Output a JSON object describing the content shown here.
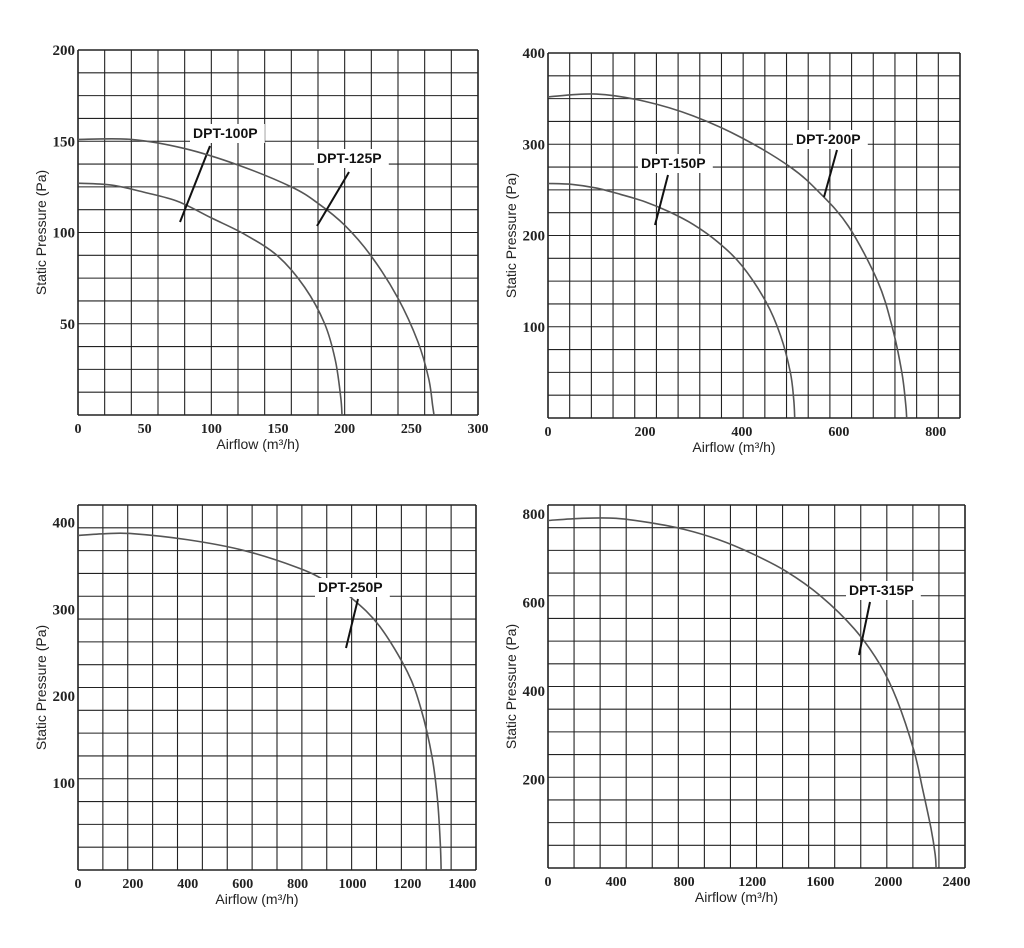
{
  "colors": {
    "grid": "#222222",
    "curve": "#555555",
    "text": "#222222"
  },
  "chart_data": [
    {
      "type": "line",
      "xlabel": "Airflow (m³/h)",
      "ylabel": "Static Pressure (Pa)",
      "xlim": [
        0,
        300
      ],
      "ylim": [
        0,
        200
      ],
      "x_ticks": [
        0,
        50,
        100,
        150,
        200,
        250,
        300
      ],
      "y_ticks": [
        50,
        100,
        150,
        200
      ],
      "grid": true,
      "series": [
        {
          "name": "DPT-100P",
          "points": [
            [
              0,
              127
            ],
            [
              25,
              126
            ],
            [
              50,
              122
            ],
            [
              75,
              117
            ],
            [
              100,
              108
            ],
            [
              125,
              99
            ],
            [
              150,
              87
            ],
            [
              170,
              70
            ],
            [
              185,
              50
            ],
            [
              193,
              30
            ],
            [
              197,
              10
            ],
            [
              198,
              0
            ]
          ]
        },
        {
          "name": "DPT-125P",
          "points": [
            [
              0,
              151
            ],
            [
              40,
              151
            ],
            [
              80,
              146
            ],
            [
              120,
              137
            ],
            [
              160,
              125
            ],
            [
              180,
              116
            ],
            [
              200,
              104
            ],
            [
              220,
              87
            ],
            [
              240,
              64
            ],
            [
              255,
              40
            ],
            [
              263,
              20
            ],
            [
              266,
              5
            ],
            [
              267,
              0
            ]
          ]
        }
      ]
    },
    {
      "type": "line",
      "xlabel": "Airflow (m³/h)",
      "ylabel": "Static Pressure (Pa)",
      "xlim": [
        0,
        850
      ],
      "ylim": [
        0,
        400
      ],
      "x_ticks": [
        0,
        200,
        400,
        600,
        800
      ],
      "y_ticks": [
        100,
        200,
        300,
        400
      ],
      "grid": true,
      "series": [
        {
          "name": "DPT-150P",
          "points": [
            [
              0,
              257
            ],
            [
              50,
              256
            ],
            [
              100,
              252
            ],
            [
              150,
              245
            ],
            [
              200,
              237
            ],
            [
              250,
              226
            ],
            [
              300,
              212
            ],
            [
              350,
              193
            ],
            [
              400,
              167
            ],
            [
              450,
              127
            ],
            [
              480,
              90
            ],
            [
              500,
              50
            ],
            [
              507,
              20
            ],
            [
              509,
              0
            ]
          ]
        },
        {
          "name": "DPT-200P",
          "points": [
            [
              0,
              352
            ],
            [
              100,
              355
            ],
            [
              200,
              347
            ],
            [
              300,
              331
            ],
            [
              400,
              307
            ],
            [
              500,
              275
            ],
            [
              560,
              247
            ],
            [
              620,
              210
            ],
            [
              680,
              150
            ],
            [
              710,
              100
            ],
            [
              730,
              50
            ],
            [
              738,
              15
            ],
            [
              740,
              0
            ]
          ]
        }
      ]
    },
    {
      "type": "line",
      "xlabel": "Airflow (m³/h)",
      "ylabel": "Static Pressure (Pa)",
      "xlim": [
        0,
        1450
      ],
      "ylim": [
        0,
        420
      ],
      "x_ticks": [
        0,
        200,
        400,
        600,
        800,
        1000,
        1200,
        1400
      ],
      "y_ticks": [
        100,
        200,
        300,
        400
      ],
      "grid": true,
      "series": [
        {
          "name": "DPT-250P",
          "points": [
            [
              0,
              385
            ],
            [
              100,
              387
            ],
            [
              200,
              387
            ],
            [
              400,
              380
            ],
            [
              600,
              368
            ],
            [
              800,
              348
            ],
            [
              900,
              333
            ],
            [
              1000,
              312
            ],
            [
              1100,
              280
            ],
            [
              1200,
              228
            ],
            [
              1250,
              185
            ],
            [
              1290,
              130
            ],
            [
              1310,
              80
            ],
            [
              1320,
              30
            ],
            [
              1323,
              0
            ]
          ]
        }
      ]
    },
    {
      "type": "line",
      "xlabel": "Airflow (m³/h)",
      "ylabel": "Static Pressure (Pa)",
      "xlim": [
        0,
        2450
      ],
      "ylim": [
        0,
        820
      ],
      "x_ticks": [
        0,
        400,
        800,
        1200,
        1600,
        2000,
        2400
      ],
      "y_ticks": [
        200,
        400,
        600,
        800
      ],
      "grid": true,
      "series": [
        {
          "name": "DPT-315P",
          "points": [
            [
              0,
              785
            ],
            [
              200,
              790
            ],
            [
              400,
              790
            ],
            [
              600,
              780
            ],
            [
              800,
              765
            ],
            [
              1000,
              742
            ],
            [
              1200,
              710
            ],
            [
              1400,
              670
            ],
            [
              1600,
              615
            ],
            [
              1800,
              540
            ],
            [
              1950,
              460
            ],
            [
              2050,
              380
            ],
            [
              2150,
              265
            ],
            [
              2200,
              180
            ],
            [
              2250,
              90
            ],
            [
              2275,
              30
            ],
            [
              2280,
              0
            ]
          ]
        }
      ]
    }
  ]
}
